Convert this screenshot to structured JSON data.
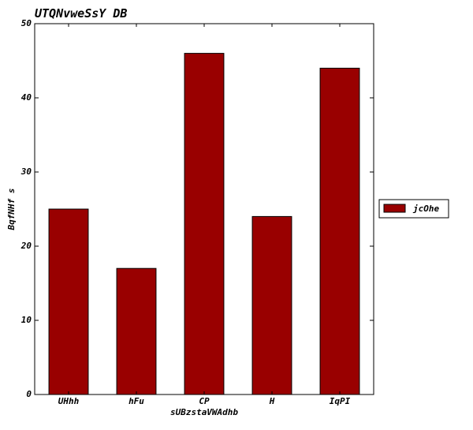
{
  "chart_data": {
    "type": "bar",
    "title": "UTQNvweSsY DB",
    "xlabel": "sUBzstaVWAdhb",
    "ylabel": "BqfNHf s",
    "categories": [
      "UHhh",
      "hFu",
      "CP",
      "H",
      "IqPI"
    ],
    "series": [
      {
        "name": "jcOhe",
        "values": [
          25,
          17,
          46,
          24,
          44
        ],
        "color": "#990000"
      }
    ],
    "ylim": [
      0,
      50
    ],
    "yticks": [
      0,
      10,
      20,
      30,
      40,
      50
    ],
    "grid": false,
    "legend_position": "outside-right"
  }
}
